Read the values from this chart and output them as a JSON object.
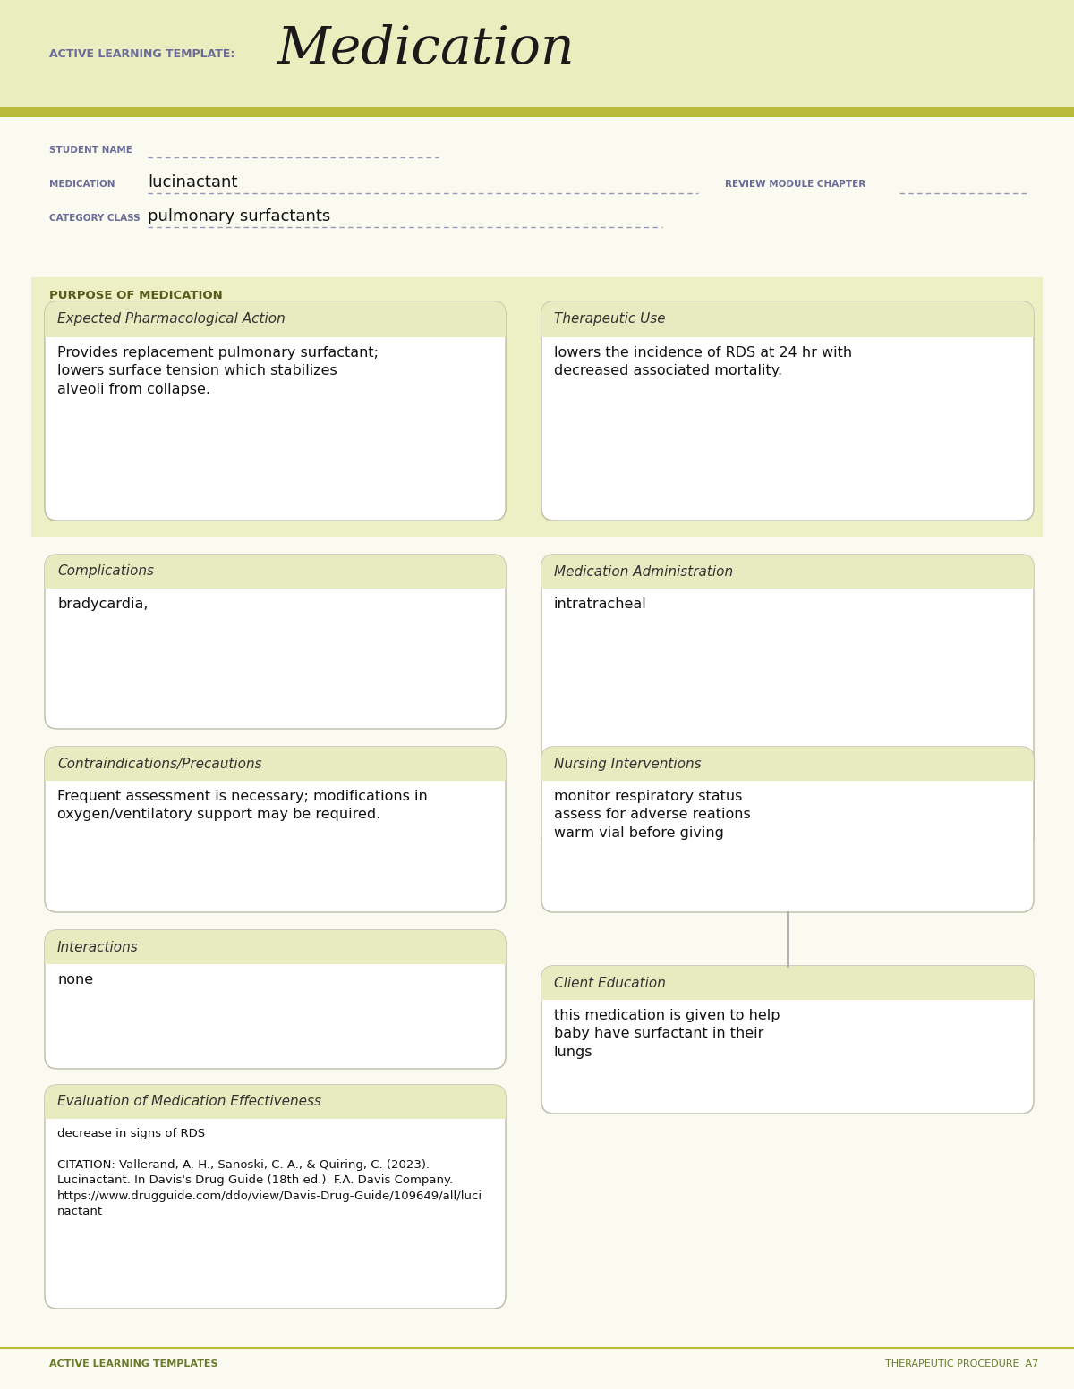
{
  "page_bg": "#fafaf0",
  "header_bg": "#eaedbe",
  "header_stripe_color": "#b8bc3a",
  "header_label": "ACTIVE LEARNING TEMPLATE:",
  "header_title": "Medication",
  "header_label_color": "#6b6b9a",
  "header_title_color": "#1a1a1a",
  "student_name_label": "STUDENT NAME",
  "medication_label": "MEDICATION",
  "medication_value": "lucinactant",
  "review_label": "REVIEW MODULE CHAPTER",
  "category_label": "CATEGORY CLASS",
  "category_value": "pulmonary surfactants",
  "purpose_label": "PURPOSE OF MEDICATION",
  "purpose_label_color": "#5a5a1a",
  "section_bg": "#edefc5",
  "box_bg": "#ffffff",
  "box_border": "#bbbbaa",
  "box_header_bg": "#e8ebc0",
  "label_color": "#333333",
  "text_color": "#111111",
  "underline_color": "#9999bb",
  "sections": {
    "expected_action_title": "Expected Pharmacological Action",
    "expected_action_body": "Provides replacement pulmonary surfactant;\nlowers surface tension which stabilizes\nalveoli from collapse.",
    "therapeutic_use_title": "Therapeutic Use",
    "therapeutic_use_body": "lowers the incidence of RDS at 24 hr with\ndecreased associated mortality.",
    "complications_title": "Complications",
    "complications_body": "bradycardia,",
    "med_admin_title": "Medication Administration",
    "med_admin_body": "intratracheal",
    "contraindications_title": "Contraindications/Precautions",
    "contraindications_body": "Frequent assessment is necessary; modifications in\noxygen/ventilatory support may be required.",
    "nursing_title": "Nursing Interventions",
    "nursing_body": "monitor respiratory status\nassess for adverse reations\nwarm vial before giving",
    "interactions_title": "Interactions",
    "interactions_body": "none",
    "client_ed_title": "Client Education",
    "client_ed_body": "this medication is given to help\nbaby have surfactant in their\nlungs",
    "eval_title": "Evaluation of Medication Effectiveness",
    "eval_body": "decrease in signs of RDS\n\nCITATION: Vallerand, A. H., Sanoski, C. A., & Quiring, C. (2023).\nLucinactant. In Davis's Drug Guide (18th ed.). F.A. Davis Company.\nhttps://www.drugguide.com/ddo/view/Davis-Drug-Guide/109649/all/luci\nnactant"
  },
  "footer_left": "ACTIVE LEARNING TEMPLATES",
  "footer_right": "THERAPEUTIC PROCEDURE  A7",
  "footer_color": "#6b7a2a"
}
